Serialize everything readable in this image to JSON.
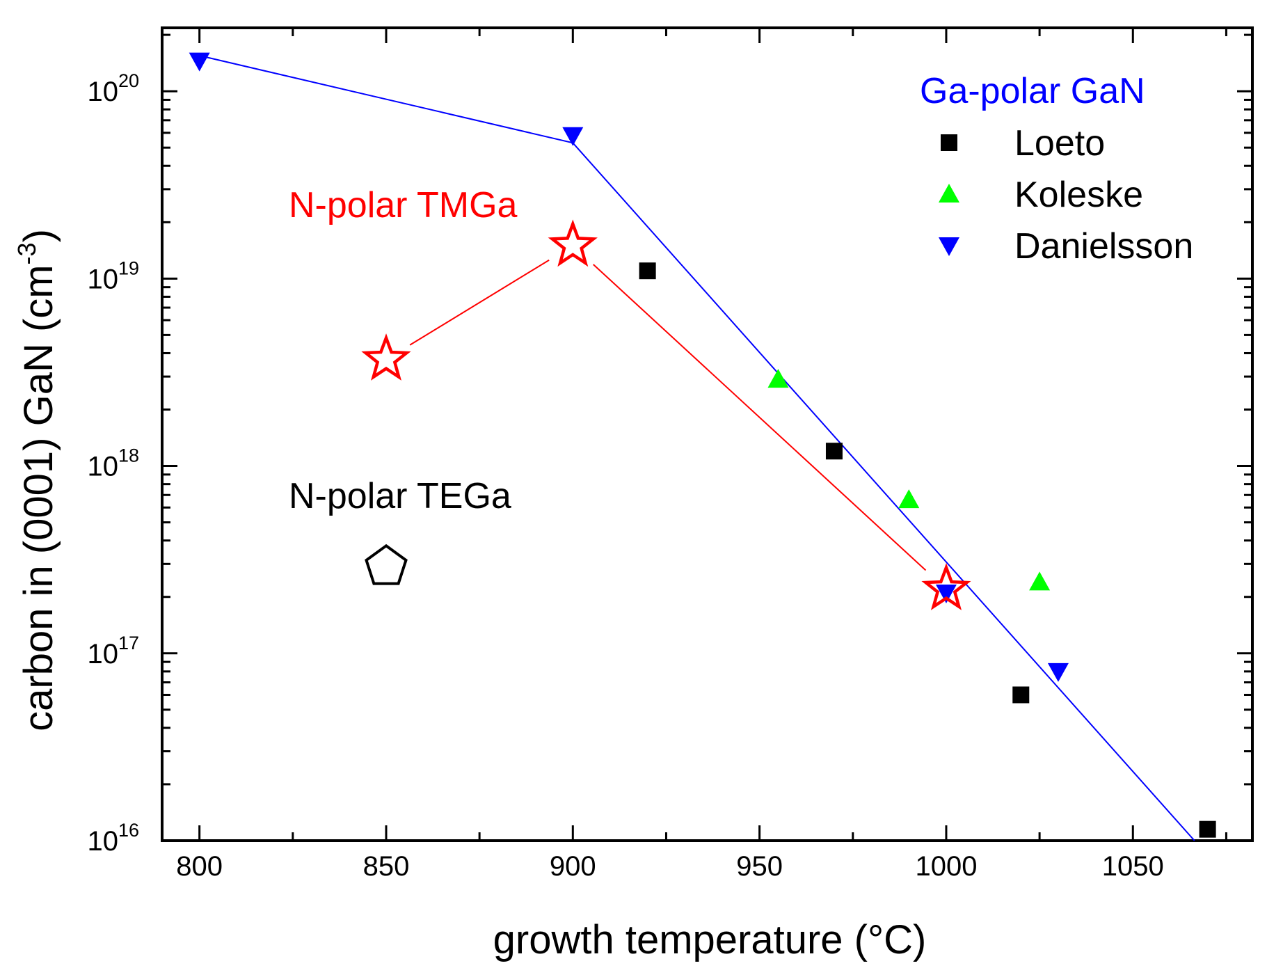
{
  "chart_data": {
    "type": "scatter",
    "xlabel": "growth temperature  (°C)",
    "ylabel": {
      "main": "carbon in (0001) GaN  (cm",
      "sup": "-3",
      "close": ")"
    },
    "xlim": [
      790,
      1082
    ],
    "ylim": [
      1e+16,
      2.18e+20
    ],
    "yscale": "log",
    "x_ticks": [
      800,
      850,
      900,
      950,
      1000,
      1050
    ],
    "x_tick_labels": [
      "800",
      "850",
      "900",
      "950",
      "1000",
      "1050"
    ],
    "y_ticks": [
      {
        "value": 1e+16,
        "base": "10",
        "exp": "16"
      },
      {
        "value": 1e+17,
        "base": "10",
        "exp": "17"
      },
      {
        "value": 1e+18,
        "base": "10",
        "exp": "18"
      },
      {
        "value": 1e+19,
        "base": "10",
        "exp": "19"
      },
      {
        "value": 1e+20,
        "base": "10",
        "exp": "20"
      }
    ],
    "legend": {
      "position": "top-right",
      "title": "Ga-polar GaN",
      "title_color": "#0000ff"
    },
    "series": [
      {
        "name": "Loeto",
        "marker": "square",
        "color": "#000000",
        "legend": true,
        "x": [
          920,
          970,
          1020,
          1070
        ],
        "y": [
          1.1e+19,
          1.2e+18,
          6e+16,
          1.15e+16
        ]
      },
      {
        "name": "Koleske",
        "marker": "triangle-up",
        "color": "#00ff00",
        "legend": true,
        "x": [
          955,
          990,
          1025
        ],
        "y": [
          2.9e+18,
          6.6e+17,
          2.4e+17
        ]
      },
      {
        "name": "Danielsson",
        "marker": "triangle-down",
        "color": "#0000ff",
        "legend": true,
        "x": [
          800,
          900,
          1000,
          1030
        ],
        "y": [
          1.45e+20,
          5.8e+19,
          2.1e+17,
          8e+16
        ]
      },
      {
        "name": "Ga-polar fit",
        "marker": "line",
        "color": "#0000ff",
        "legend": false,
        "x": [
          800,
          900,
          1066.5
        ],
        "y": [
          1.55e+20,
          5.3e+19,
          1e+16
        ]
      },
      {
        "name": "N-polar TMGa",
        "marker": "star",
        "color": "#ff0000",
        "legend": false,
        "connected": true,
        "x": [
          850,
          900,
          1000
        ],
        "y": [
          3.7e+18,
          1.5e+19,
          2.2e+17
        ]
      },
      {
        "name": "N-polar TEGa",
        "marker": "pentagon",
        "color": "#000000",
        "legend": false,
        "x": [
          850
        ],
        "y": [
          2.9e+17
        ]
      }
    ],
    "annotations": [
      {
        "text": "N-polar TMGa",
        "color": "#ff0000"
      },
      {
        "text": "N-polar TEGa",
        "color": "#000000"
      }
    ]
  }
}
